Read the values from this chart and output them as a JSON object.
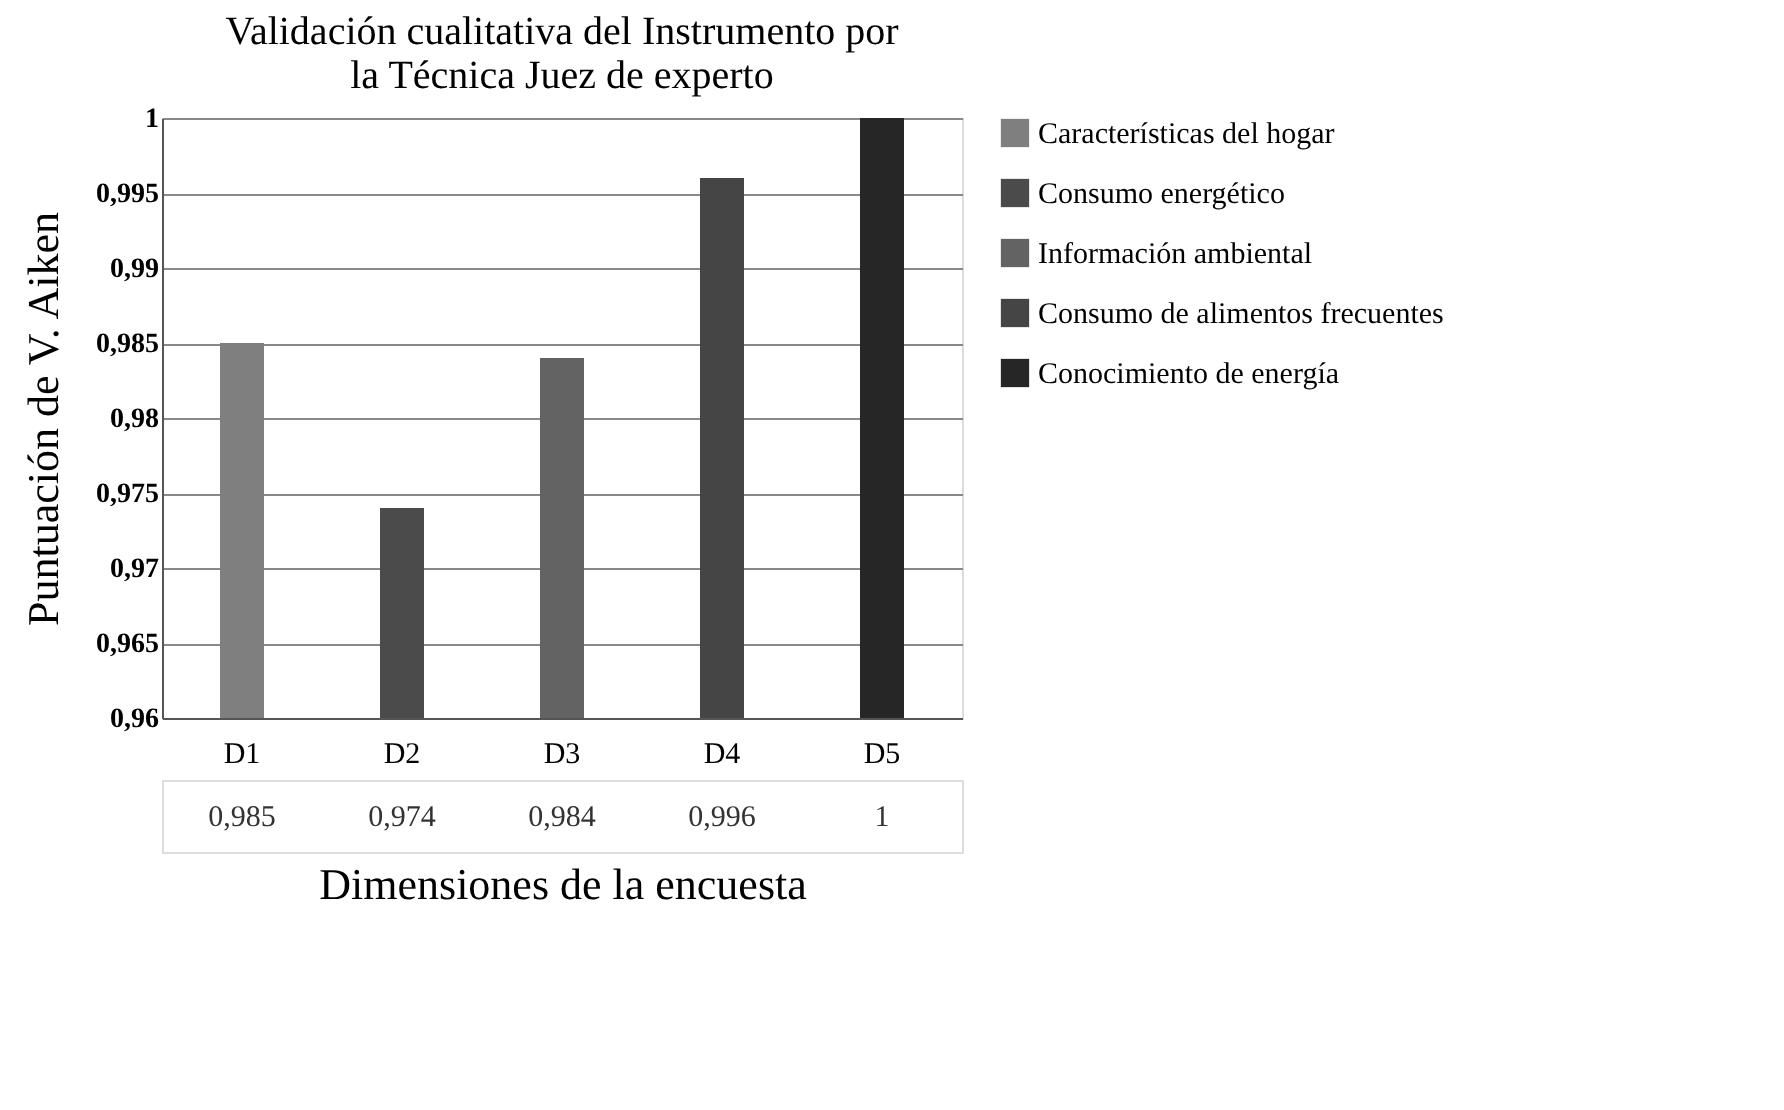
{
  "chart_data": {
    "type": "bar",
    "title": "Validación cualitativa del Instrumento por la Técnica Juez de experto",
    "xlabel": "Dimensiones de la encuesta",
    "ylabel": "Puntuación de V. Aiken",
    "categories": [
      "D1",
      "D2",
      "D3",
      "D4",
      "D5"
    ],
    "series": [
      {
        "name": "Características del hogar",
        "color": "#7f7f7f",
        "values": [
          0.985,
          null,
          null,
          null,
          null
        ]
      },
      {
        "name": "Consumo energético",
        "color": "#4b4b4b",
        "values": [
          null,
          0.974,
          null,
          null,
          null
        ]
      },
      {
        "name": "Información ambiental",
        "color": "#636363",
        "values": [
          null,
          null,
          0.984,
          null,
          null
        ]
      },
      {
        "name": "Consumo de alimentos frecuentes",
        "color": "#454545",
        "values": [
          null,
          null,
          null,
          0.996,
          null
        ]
      },
      {
        "name": "Conocimiento de energía",
        "color": "#262626",
        "values": [
          null,
          null,
          null,
          null,
          1
        ]
      }
    ],
    "value_labels": [
      "0,985",
      "0,974",
      "0,984",
      "0,996",
      "1"
    ],
    "ylim": [
      0.96,
      1
    ],
    "yticks": [
      {
        "value": 0.96,
        "label": "0,96"
      },
      {
        "value": 0.965,
        "label": "0,965"
      },
      {
        "value": 0.97,
        "label": "0,97"
      },
      {
        "value": 0.975,
        "label": "0,975"
      },
      {
        "value": 0.98,
        "label": "0,98"
      },
      {
        "value": 0.985,
        "label": "0,985"
      },
      {
        "value": 0.99,
        "label": "0,99"
      },
      {
        "value": 0.995,
        "label": "0,995"
      },
      1
    ],
    "grid": "y",
    "legend": "right"
  }
}
